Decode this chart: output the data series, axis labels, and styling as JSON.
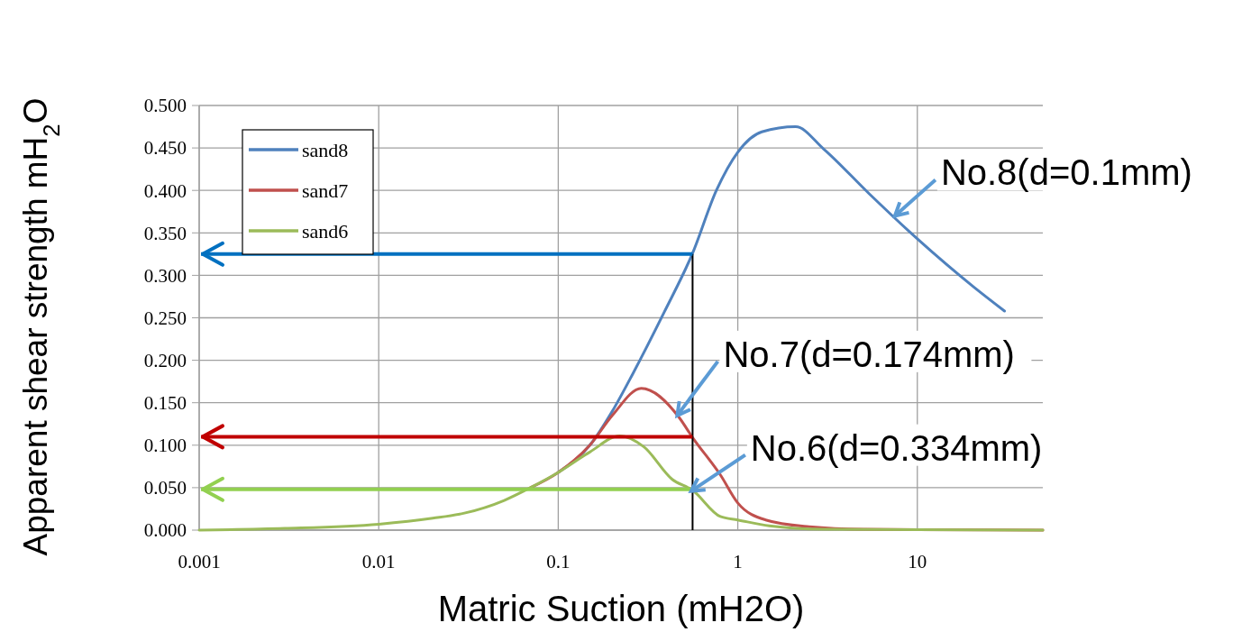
{
  "chart_data": {
    "type": "line",
    "xlabel": "Matric Suction (mH2O)",
    "ylabel": "Apparent shear strength mH$_{2}$O",
    "log": "x",
    "xlim": [
      0.001,
      50
    ],
    "xticks": [
      0.001,
      0.01,
      0.1,
      1,
      10
    ],
    "ylim": [
      0,
      0.5
    ],
    "yticks": [
      {
        "value": 0,
        "label": "0.000"
      },
      {
        "value": 0.05,
        "label": "0.050"
      },
      {
        "value": 0.1,
        "label": "0.100"
      },
      {
        "value": 0.15,
        "label": "0.150"
      },
      {
        "value": 0.2,
        "label": "0.200"
      },
      {
        "value": 0.25,
        "label": "0.250"
      },
      {
        "value": 0.3,
        "label": "0.300"
      },
      {
        "value": 0.35,
        "label": "0.350"
      },
      {
        "value": 0.4,
        "label": "0.400"
      },
      {
        "value": 0.45,
        "label": "0.450"
      },
      {
        "value": 0.5,
        "label": "0.500"
      }
    ],
    "grid": true,
    "legend": "top left",
    "marker": "none",
    "line_style": "solid",
    "series": [
      {
        "name": "sand8",
        "color": "#4f81bd",
        "x": [
          0.1,
          0.15,
          0.2,
          0.26,
          0.39,
          0.56,
          0.76,
          1,
          1.36,
          2.1,
          3,
          5.4,
          10,
          20.7,
          30.6
        ],
        "values": [
          0.068,
          0.1,
          0.14,
          0.184,
          0.257,
          0.326,
          0.4,
          0.445,
          0.469,
          0.475,
          0.449,
          0.396,
          0.343,
          0.286,
          0.258
        ]
      },
      {
        "name": "sand7",
        "color": "#c0504d",
        "x": [
          0.07,
          0.1,
          0.15,
          0.2,
          0.29,
          0.47,
          0.56,
          0.8,
          1,
          1.43,
          2.5,
          5,
          50
        ],
        "values": [
          0.05,
          0.068,
          0.1,
          0.135,
          0.167,
          0.133,
          0.109,
          0.065,
          0.032,
          0.012,
          0.004,
          0.001,
          0
        ]
      },
      {
        "name": "sand6",
        "color": "#9bbb59",
        "x": [
          0.001,
          0.003,
          0.01,
          0.02,
          0.03,
          0.05,
          0.07,
          0.1,
          0.15,
          0.22,
          0.3,
          0.43,
          0.56,
          0.8,
          1,
          1.5,
          3,
          50
        ],
        "values": [
          0,
          0.002,
          0.007,
          0.014,
          0.02,
          0.035,
          0.05,
          0.068,
          0.092,
          0.111,
          0.098,
          0.06,
          0.047,
          0.016,
          0.012,
          0.005,
          0.001,
          0
        ]
      }
    ],
    "ref_lines": [
      {
        "axis": "x",
        "value": 0.56,
        "color": "#000000"
      },
      {
        "axis": "y",
        "value": 0.325,
        "color": "#0070c0"
      },
      {
        "axis": "y",
        "value": 0.11,
        "color": "#c00000"
      },
      {
        "axis": "y",
        "value": 0.048,
        "color": "#92d050"
      }
    ],
    "annotations": [
      {
        "text": "No.8(d=0.1mm)",
        "x": 7.5,
        "y": 0.37
      },
      {
        "text": "No.7(d=0.174mm)",
        "x": 0.46,
        "y": 0.135
      },
      {
        "text": "No.6(d=0.334mm)",
        "x": 0.55,
        "y": 0.046
      }
    ]
  }
}
